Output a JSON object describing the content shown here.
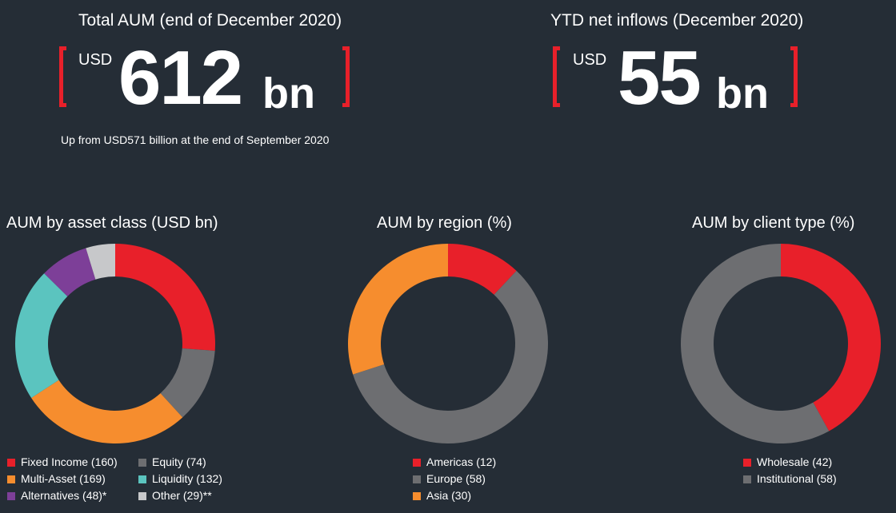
{
  "kpis": {
    "aum": {
      "title": "Total AUM (end of December 2020)",
      "currency": "USD",
      "value": "612",
      "unit": "bn",
      "note": "Up from USD571 billion at the end of September 2020"
    },
    "inflows": {
      "title": "YTD net inflows (December 2020)",
      "currency": "USD",
      "value": "55",
      "unit": "bn"
    }
  },
  "colors": {
    "background": "#252d36",
    "accent_red": "#e8202a",
    "grey": "#6d6e71",
    "orange": "#f68d2e",
    "teal": "#5bc4bf",
    "purple": "#7d3f98",
    "light_grey": "#c7c8ca"
  },
  "chart_data": [
    {
      "type": "pie",
      "title": "AUM by asset class (USD bn)",
      "donut": true,
      "slices": [
        {
          "label": "Fixed Income",
          "value": 160,
          "legend": "Fixed Income (160)",
          "color": "#e8202a"
        },
        {
          "label": "Equity",
          "value": 74,
          "legend": "Equity (74)",
          "color": "#6d6e71"
        },
        {
          "label": "Multi-Asset",
          "value": 169,
          "legend": "Multi-Asset (169)",
          "color": "#f68d2e"
        },
        {
          "label": "Liquidity",
          "value": 132,
          "legend": "Liquidity (132)",
          "color": "#5bc4bf"
        },
        {
          "label": "Alternatives",
          "value": 48,
          "legend": "Alternatives (48)*",
          "color": "#7d3f98"
        },
        {
          "label": "Other",
          "value": 29,
          "legend": "Other (29)**",
          "color": "#c7c8ca"
        }
      ]
    },
    {
      "type": "pie",
      "title": "AUM by region (%)",
      "donut": true,
      "slices": [
        {
          "label": "Americas",
          "value": 12,
          "legend": "Americas (12)",
          "color": "#e8202a"
        },
        {
          "label": "Europe",
          "value": 58,
          "legend": "Europe (58)",
          "color": "#6d6e71"
        },
        {
          "label": "Asia",
          "value": 30,
          "legend": "Asia (30)",
          "color": "#f68d2e"
        }
      ]
    },
    {
      "type": "pie",
      "title": "AUM by client type (%)",
      "donut": true,
      "slices": [
        {
          "label": "Wholesale",
          "value": 42,
          "legend": "Wholesale (42)",
          "color": "#e8202a"
        },
        {
          "label": "Institutional",
          "value": 58,
          "legend": "Institutional (58)",
          "color": "#6d6e71"
        }
      ]
    }
  ]
}
